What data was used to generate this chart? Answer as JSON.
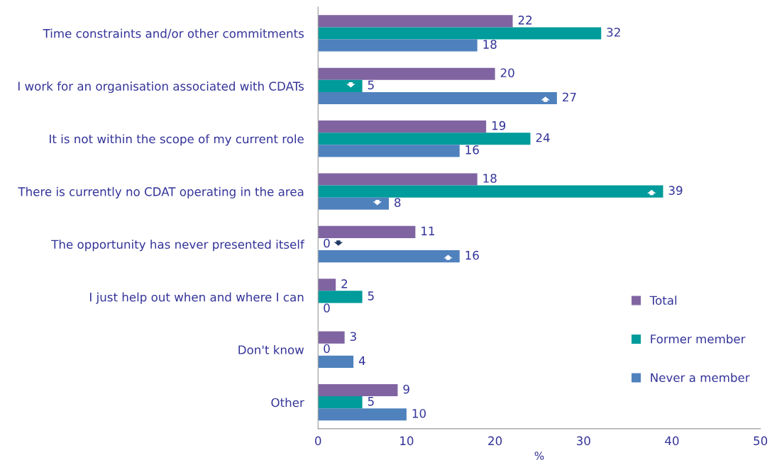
{
  "chart_data": {
    "type": "bar",
    "orientation": "horizontal",
    "xlabel": "%",
    "categories": [
      "Time constraints and/or other commitments",
      "I work for an organisation associated with CDATs",
      "It is not within the scope of my current role",
      "There is currently no CDAT operating in the area",
      "The opportunity has never presented itself",
      "I just help out when and where I can",
      "Don't know",
      "Other"
    ],
    "series": [
      {
        "name": "Total",
        "color": "#8064a2",
        "values": [
          22,
          20,
          19,
          18,
          11,
          2,
          3,
          9
        ]
      },
      {
        "name": "Former member",
        "color": "#009b9b",
        "values": [
          32,
          5,
          24,
          39,
          0,
          5,
          0,
          5
        ]
      },
      {
        "name": "Never a member",
        "color": "#4f81bd",
        "values": [
          18,
          27,
          16,
          8,
          16,
          0,
          4,
          10
        ]
      }
    ],
    "xlim": [
      0,
      50
    ],
    "xticks": [
      0,
      10,
      20,
      30,
      40,
      50
    ],
    "data_labels": true,
    "grid": false,
    "legend": "bottom right"
  }
}
